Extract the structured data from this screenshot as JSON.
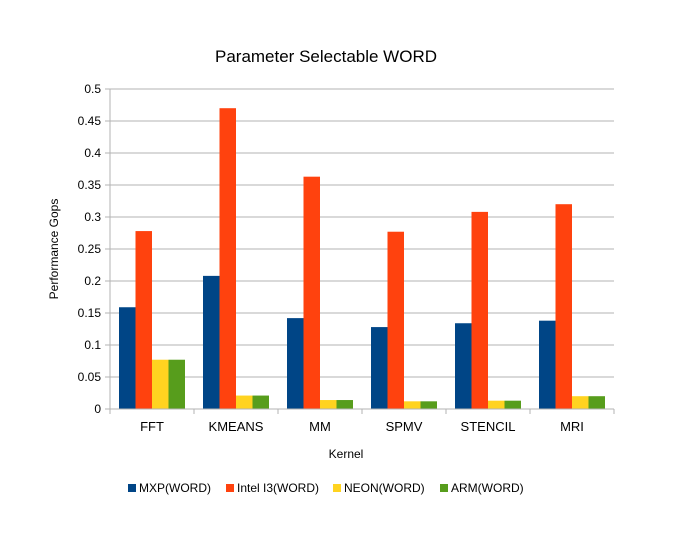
{
  "chart_data": {
    "type": "bar",
    "title": "Parameter Selectable WORD",
    "xlabel": "Kernel",
    "ylabel": "Performance Gops",
    "ylim": [
      0,
      0.5
    ],
    "yticks": [
      "0",
      "0.05",
      "0.1",
      "0.15",
      "0.2",
      "0.25",
      "0.3",
      "0.35",
      "0.4",
      "0.45",
      "0.5"
    ],
    "grid": true,
    "legend_position": "bottom",
    "categories": [
      "FFT",
      "KMEANS",
      "MM",
      "SPMV",
      "STENCIL",
      "MRI"
    ],
    "series": [
      {
        "name": "MXP(WORD)",
        "color": "#004586",
        "values": [
          0.159,
          0.208,
          0.142,
          0.128,
          0.134,
          0.138
        ]
      },
      {
        "name": "Intel I3(WORD)",
        "color": "#ff420e",
        "values": [
          0.278,
          0.47,
          0.363,
          0.277,
          0.308,
          0.32
        ]
      },
      {
        "name": "NEON(WORD)",
        "color": "#ffd320",
        "values": [
          0.077,
          0.021,
          0.014,
          0.012,
          0.013,
          0.02
        ]
      },
      {
        "name": "ARM(WORD)",
        "color": "#579d1c",
        "values": [
          0.077,
          0.021,
          0.014,
          0.012,
          0.013,
          0.02
        ]
      }
    ]
  }
}
